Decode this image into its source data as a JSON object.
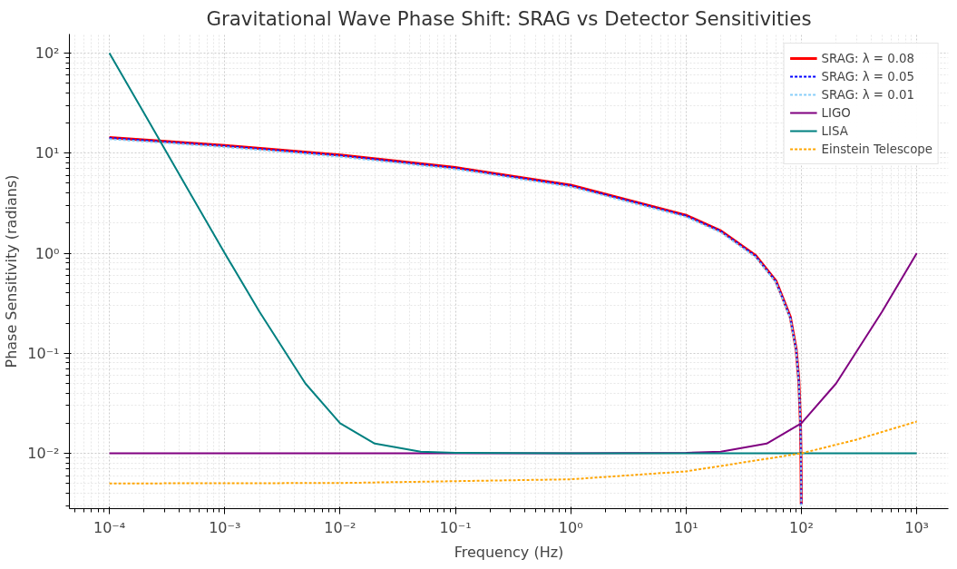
{
  "chart_data": {
    "type": "line",
    "title": "Gravitational Wave Phase Shift: SRAG vs Detector Sensitivities",
    "xlabel": "Frequency (Hz)",
    "ylabel": "Phase Sensitivity (radians)",
    "log": "xy",
    "grid": true,
    "legend": "top right",
    "xlim": [
      4.5e-05,
      1880
    ],
    "ylim": [
      0.0028,
      155
    ],
    "xticks": [
      {
        "value": 0.0001,
        "label": "10⁻⁴"
      },
      {
        "value": 0.001,
        "label": "10⁻³"
      },
      {
        "value": 0.01,
        "label": "10⁻²"
      },
      {
        "value": 0.1,
        "label": "10⁻¹"
      },
      {
        "value": 1,
        "label": "10⁰"
      },
      {
        "value": 10,
        "label": "10¹"
      },
      {
        "value": 100,
        "label": "10²"
      },
      {
        "value": 1000,
        "label": "10³"
      }
    ],
    "yticks": [
      {
        "value": 0.01,
        "label": "10⁻²"
      },
      {
        "value": 0.1,
        "label": "10⁻¹"
      },
      {
        "value": 1,
        "label": "10⁰"
      },
      {
        "value": 10,
        "label": "10¹"
      },
      {
        "value": 100,
        "label": "10²"
      }
    ],
    "series": [
      {
        "name": "SRAG: λ = 0.08",
        "color": "#ff0000",
        "line_style": "solid",
        "x": [
          0.0001,
          0.001,
          0.01,
          0.1,
          1,
          10,
          20,
          40,
          60,
          80,
          90,
          95,
          98,
          99,
          99.5,
          99.7
        ],
        "values": [
          14.3,
          11.9,
          9.56,
          7.17,
          4.78,
          2.39,
          1.67,
          0.95,
          0.53,
          0.232,
          0.11,
          0.053,
          0.021,
          0.0104,
          0.0052,
          0.0031
        ]
      },
      {
        "name": "SRAG: λ = 0.05",
        "color": "#0000ff",
        "line_style": "dashed",
        "x": [
          0.0001,
          0.001,
          0.01,
          0.1,
          1,
          10,
          20,
          40,
          60,
          80,
          90,
          95,
          98,
          99,
          99.5,
          99.7
        ],
        "values": [
          14.2,
          11.8,
          9.48,
          7.11,
          4.74,
          2.37,
          1.66,
          0.94,
          0.526,
          0.23,
          0.109,
          0.0529,
          0.0208,
          0.0103,
          0.0052,
          0.0031
        ]
      },
      {
        "name": "SRAG: λ = 0.01",
        "color": "#87cefa",
        "line_style": "dashed",
        "x": [
          0.0001,
          0.001,
          0.01,
          0.1,
          1,
          10,
          20,
          40,
          60,
          80,
          90,
          95,
          98,
          99,
          99.5,
          99.7
        ],
        "values": [
          13.8,
          11.5,
          9.2,
          6.9,
          4.6,
          2.3,
          1.61,
          0.915,
          0.511,
          0.223,
          0.106,
          0.0513,
          0.0202,
          0.01,
          0.005,
          0.003
        ]
      },
      {
        "name": "LIGO",
        "color": "#800080",
        "line_style": "solid",
        "x": [
          0.0001,
          1,
          10,
          20,
          50,
          100,
          200,
          500,
          1000
        ],
        "values": [
          0.01,
          0.01,
          0.0101,
          0.0104,
          0.0125,
          0.02,
          0.05,
          0.26,
          1.0
        ]
      },
      {
        "name": "LISA",
        "color": "#008080",
        "line_style": "solid",
        "x": [
          0.0001,
          0.0002,
          0.0005,
          0.001,
          0.002,
          0.005,
          0.01,
          0.02,
          0.05,
          0.1,
          1,
          10,
          100,
          1000
        ],
        "values": [
          100,
          25,
          4.0,
          1.0,
          0.26,
          0.05,
          0.02,
          0.0125,
          0.0104,
          0.0101,
          0.01,
          0.01,
          0.01,
          0.01
        ]
      },
      {
        "name": "Einstein Telescope",
        "color": "#ffa500",
        "line_style": "dashed",
        "x": [
          0.0001,
          0.01,
          1,
          10,
          100,
          300,
          1000
        ],
        "values": [
          0.005,
          0.00505,
          0.0055,
          0.0066,
          0.01,
          0.0137,
          0.0208
        ]
      }
    ]
  }
}
